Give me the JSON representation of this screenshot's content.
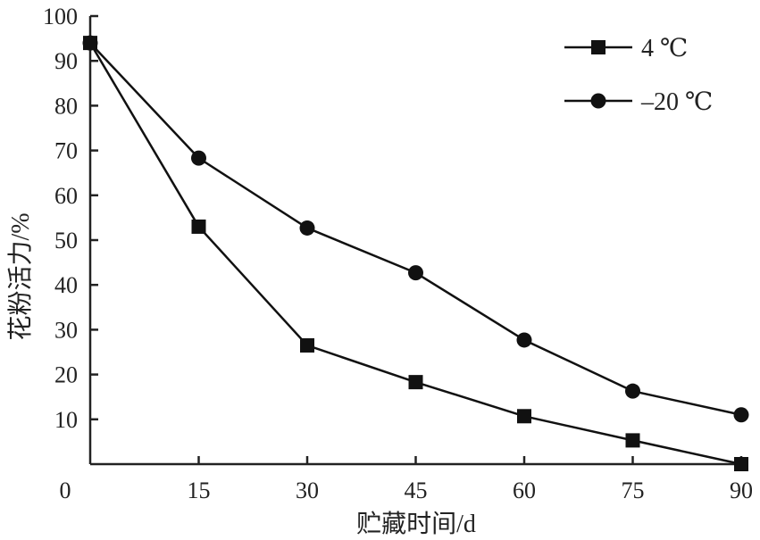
{
  "chart_data": {
    "type": "line",
    "xlabel": "贮藏时间/d",
    "ylabel": "花粉活力/%",
    "xlim": [
      0,
      90
    ],
    "ylim": [
      0,
      100
    ],
    "x_ticks": [
      0,
      15,
      30,
      45,
      60,
      75,
      90
    ],
    "y_ticks": [
      10,
      20,
      30,
      40,
      50,
      60,
      70,
      80,
      90,
      100
    ],
    "x": [
      0,
      15,
      30,
      45,
      60,
      75,
      90
    ],
    "grid": false,
    "legend_position": "top-right",
    "series": [
      {
        "name": "4 ℃",
        "marker": "square",
        "color": "#111111",
        "values": [
          94,
          53,
          26.5,
          18.3,
          10.7,
          5.3,
          0
        ]
      },
      {
        "name": "–20 ℃",
        "marker": "circle",
        "color": "#111111",
        "values": [
          94,
          68.3,
          52.7,
          42.7,
          27.7,
          16.3,
          11
        ]
      }
    ]
  }
}
